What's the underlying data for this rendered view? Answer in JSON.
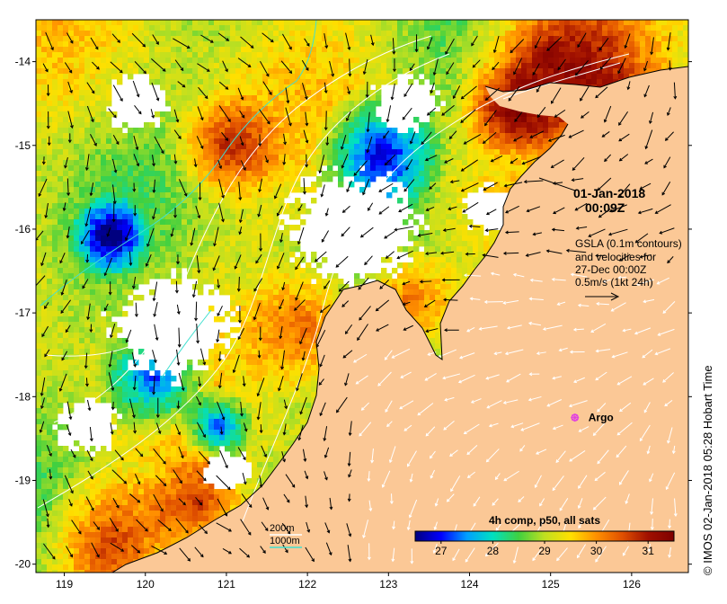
{
  "map": {
    "lat_ticks": [
      "-14",
      "-15",
      "-16",
      "-17",
      "-18",
      "-19",
      "-20"
    ],
    "lon_ticks": [
      "119",
      "120",
      "121",
      "122",
      "123",
      "124",
      "125",
      "126"
    ],
    "lon_range": [
      118.65,
      126.7
    ],
    "lat_range": [
      -20.1,
      -13.5
    ],
    "colors": {
      "land": "#fbc896",
      "coast": "#000000",
      "contour": "#ffffff",
      "bathy_200m": "#ffffff",
      "bathy_1000m": "#40e0d0",
      "argo": "#e040e0"
    }
  },
  "annotations": {
    "datetime_line1": "01-Jan-2018",
    "datetime_line2": "00:09Z",
    "gsla_line1": "GSLA (0.1m contours)",
    "gsla_line2": "and velocities for",
    "gsla_line3": "27-Dec 00:00Z",
    "gsla_line4": "0.5m/s (1kt 24h)"
  },
  "argo": {
    "label": "Argo",
    "lon": 125.3,
    "lat": -18.25
  },
  "bathymetry_legend": {
    "label_200m": "200m",
    "label_1000m": "1000m"
  },
  "colorbar": {
    "title": "4h comp, p50, all sats",
    "ticks": [
      "27",
      "28",
      "29",
      "30",
      "31"
    ],
    "range": [
      26.5,
      31.5
    ],
    "colors": [
      "#00007f",
      "#0000ff",
      "#00a0ff",
      "#00e0c0",
      "#40d040",
      "#c0e020",
      "#ffe000",
      "#ff9000",
      "#e05000",
      "#a01000",
      "#7f0000"
    ]
  },
  "credit": "IMOS 02-Jan-2018 05:28 Hobart Time"
}
